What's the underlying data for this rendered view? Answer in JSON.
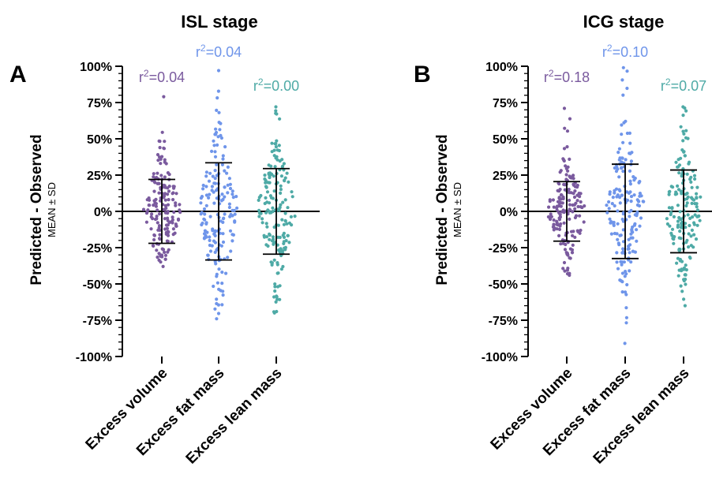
{
  "colors": {
    "purple": "#7a5a9e",
    "blue": "#6f95ea",
    "teal": "#4eaaa6",
    "axis": "#000000"
  },
  "chart_data": [
    {
      "type": "scatter",
      "panel": "A",
      "title": "ISL stage",
      "ylabel": "Predicted - Observed",
      "ylabel_sub": "MEAN ± SD",
      "ylim": [
        -100,
        100
      ],
      "y_ticks": [
        "100%",
        "75%",
        "50%",
        "25%",
        "0%",
        "-25%",
        "-50%",
        "-75%",
        "-100%"
      ],
      "categories": [
        "Excess volume",
        "Excess fat mass",
        "Excess lean mass"
      ],
      "r2": [
        "r2=0.04",
        "r2=0.04",
        "r2=0.00"
      ],
      "series": [
        {
          "mean": 0,
          "sd": 22,
          "min": -38,
          "max": 79,
          "n": 170
        },
        {
          "mean": 0,
          "sd": 33.5,
          "min": -74,
          "max": 97,
          "n": 170
        },
        {
          "mean": 0,
          "sd": 29.5,
          "min": -70,
          "max": 72,
          "n": 170
        }
      ]
    },
    {
      "type": "scatter",
      "panel": "B",
      "title": "ICG stage",
      "ylabel": "Predicted - Observed",
      "ylabel_sub": "MEAN ± SD",
      "ylim": [
        -100,
        100
      ],
      "y_ticks": [
        "100%",
        "75%",
        "50%",
        "25%",
        "0%",
        "-25%",
        "-50%",
        "-75%",
        "-100%"
      ],
      "categories": [
        "Excess volume",
        "Excess fat mass",
        "Excess lean mass"
      ],
      "r2": [
        "r2=0.18",
        "r2=0.10",
        "r2=0.07"
      ],
      "series": [
        {
          "mean": 0,
          "sd": 20.5,
          "min": -44,
          "max": 71,
          "n": 170
        },
        {
          "mean": 0,
          "sd": 32.5,
          "min": -91,
          "max": 99,
          "n": 170
        },
        {
          "mean": 0,
          "sd": 28.5,
          "min": -65,
          "max": 72,
          "n": 170
        }
      ]
    }
  ]
}
